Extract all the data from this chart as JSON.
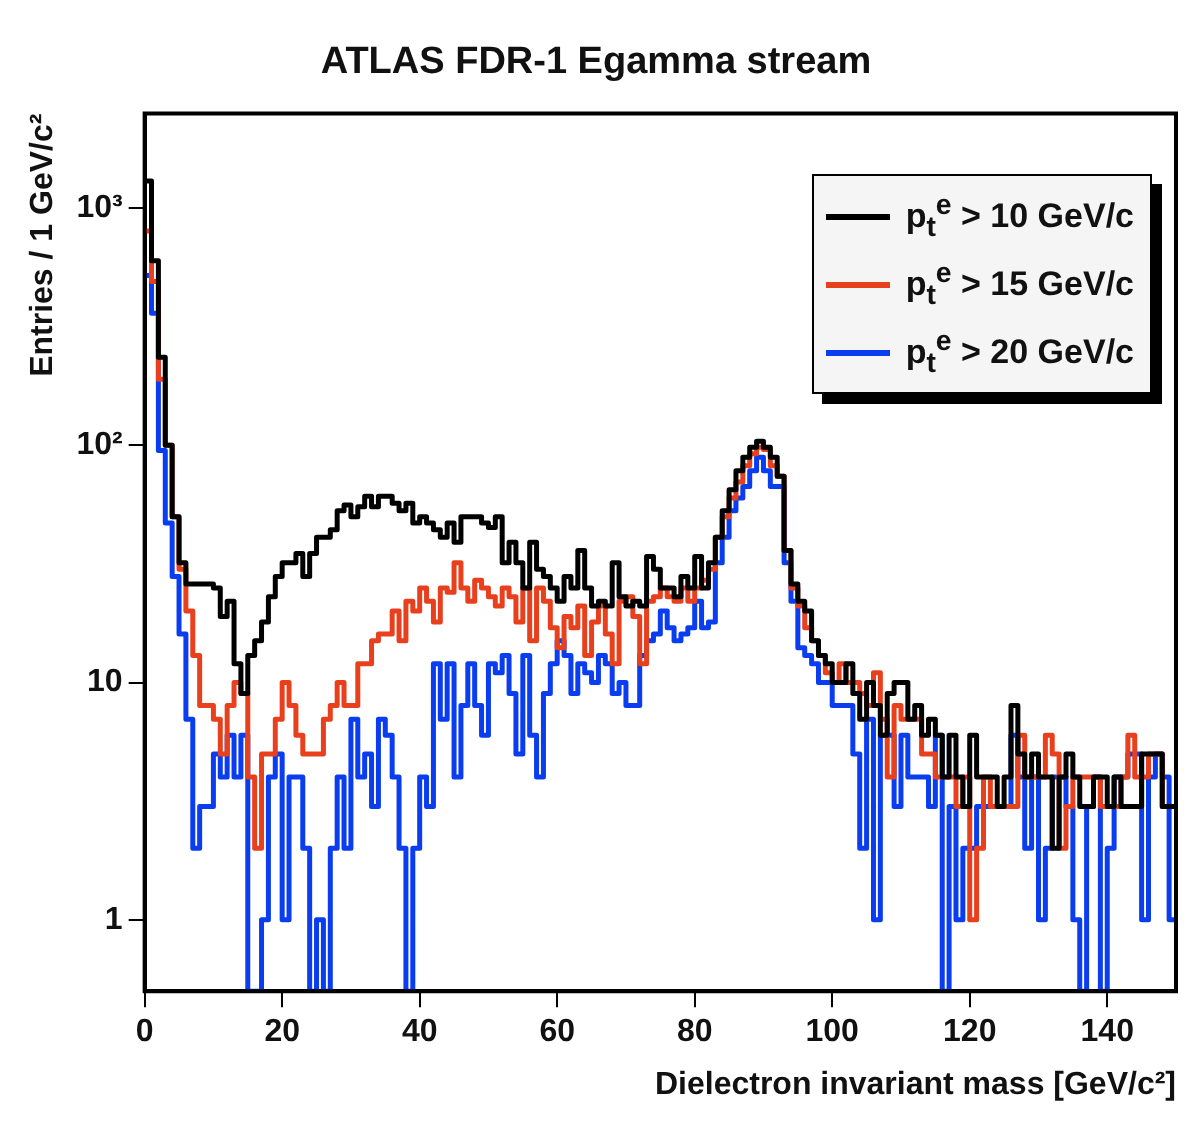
{
  "chart_data": {
    "type": "histogram",
    "title": "ATLAS FDR-1 Egamma stream",
    "xlabel": "Dielectron invariant mass [GeV/c²]",
    "ylabel": "Entries / 1 GeV/c²",
    "bins": [
      0,
      1,
      2,
      3,
      4,
      5,
      6,
      7,
      8,
      9,
      10,
      11,
      12,
      13,
      14,
      15,
      16,
      17,
      18,
      19,
      20,
      21,
      22,
      23,
      24,
      25,
      26,
      27,
      28,
      29,
      30,
      31,
      32,
      33,
      34,
      35,
      36,
      37,
      38,
      39,
      40,
      41,
      42,
      43,
      44,
      45,
      46,
      47,
      48,
      49,
      50,
      51,
      52,
      53,
      54,
      55,
      56,
      57,
      58,
      59,
      60,
      61,
      62,
      63,
      64,
      65,
      66,
      67,
      68,
      69,
      70,
      71,
      72,
      73,
      74,
      75,
      76,
      77,
      78,
      79,
      80,
      81,
      82,
      83,
      84,
      85,
      86,
      87,
      88,
      89,
      90,
      91,
      92,
      93,
      94,
      95,
      96,
      97,
      98,
      99,
      100,
      101,
      102,
      103,
      104,
      105,
      106,
      107,
      108,
      109,
      110,
      111,
      112,
      113,
      114,
      115,
      116,
      117,
      118,
      119,
      120,
      121,
      122,
      123,
      124,
      125,
      126,
      127,
      128,
      129,
      130,
      131,
      132,
      133,
      134,
      135,
      136,
      137,
      138,
      139,
      140,
      141,
      142,
      143,
      144,
      145,
      146,
      147,
      148,
      149,
      150
    ],
    "series": [
      {
        "name": "p$_{t}$$^{e}$ > 10 GeV/c",
        "color": "#000000",
        "values": [
          1300,
          600,
          235,
          100,
          50,
          32,
          26,
          26,
          26,
          26,
          25,
          19,
          22,
          12,
          9,
          13,
          15,
          18,
          23,
          28,
          32,
          32,
          35,
          28,
          35,
          41,
          41,
          44,
          53,
          56,
          50,
          55,
          61,
          55,
          61,
          61,
          57,
          53,
          57,
          47,
          50,
          47,
          44,
          41,
          47,
          39,
          50,
          50,
          50,
          47,
          45,
          50,
          32,
          39,
          32,
          25,
          39,
          30,
          28,
          25,
          22,
          28,
          25,
          36,
          25,
          21,
          22,
          21,
          32,
          23,
          21,
          22,
          21,
          34,
          30,
          25,
          25,
          23,
          28,
          25,
          34,
          25,
          32,
          41,
          53,
          65,
          78,
          89,
          98,
          104,
          98,
          89,
          74,
          36,
          26,
          22,
          20,
          15,
          13,
          12,
          10,
          10,
          12,
          9,
          7,
          10,
          8,
          6,
          9,
          10,
          10,
          7,
          8,
          6,
          7,
          6,
          4,
          6,
          4,
          3,
          6,
          4,
          4,
          4,
          3,
          4,
          8,
          5,
          4,
          5,
          4,
          4,
          2,
          4,
          5,
          4,
          3,
          3,
          4,
          4,
          3,
          4,
          3,
          3,
          3,
          5,
          5,
          5,
          3,
          3
        ]
      },
      {
        "name": "p$_{t}$$^{e}$ > 15 GeV/c",
        "color": "#e8401c",
        "values": [
          800,
          490,
          190,
          100,
          50,
          30,
          20,
          13,
          8,
          8,
          7,
          5,
          8,
          10,
          9,
          4,
          2,
          5,
          5,
          7,
          10,
          8,
          6,
          5,
          5,
          5,
          7,
          8,
          10,
          8,
          8,
          12,
          12,
          15,
          16,
          16,
          20,
          15,
          22,
          20,
          25,
          22,
          18,
          25,
          24,
          32,
          25,
          22,
          27,
          25,
          23,
          21,
          25,
          23,
          18,
          25,
          15,
          25,
          22,
          17,
          14,
          19,
          17,
          21,
          13,
          18,
          21,
          16,
          12,
          22,
          23,
          19,
          12,
          22,
          23,
          25,
          23,
          22,
          25,
          22,
          25,
          27,
          30,
          41,
          50,
          60,
          70,
          82,
          92,
          98,
          96,
          82,
          74,
          36,
          25,
          21,
          17,
          15,
          13,
          11,
          10,
          12,
          10,
          10,
          9,
          8,
          11,
          7,
          4,
          8,
          7,
          7,
          7,
          5,
          5,
          4,
          4,
          4,
          3,
          4,
          1,
          2,
          4,
          3,
          3,
          3,
          3,
          6,
          4,
          4,
          4,
          6,
          5,
          2,
          3,
          4,
          4,
          4,
          4,
          3,
          3,
          3,
          4,
          6,
          4,
          4,
          5,
          5,
          3,
          3
        ]
      },
      {
        "name": "p$_{t}$$^{e}$ > 20 GeV/c",
        "color": "#0a3cf0",
        "values": [
          520,
          360,
          95,
          47,
          28,
          16,
          7,
          2,
          3,
          3,
          5,
          4,
          6,
          4,
          6,
          null,
          null,
          1,
          4,
          5,
          1,
          4,
          4,
          2,
          null,
          1,
          null,
          2,
          4,
          2,
          7,
          4,
          5,
          3,
          7,
          6,
          4,
          2,
          null,
          2,
          4,
          3,
          12,
          7,
          12,
          4,
          8,
          12,
          8,
          6,
          12,
          11,
          13,
          9,
          5,
          13,
          6,
          4,
          9,
          12,
          15,
          13,
          9,
          12,
          11,
          10,
          13,
          12,
          9,
          10,
          8,
          8,
          13,
          15,
          16,
          20,
          17,
          15,
          16,
          17,
          22,
          17,
          18,
          32,
          41,
          53,
          60,
          67,
          78,
          89,
          78,
          67,
          67,
          32,
          22,
          14,
          13,
          12,
          10,
          10,
          8,
          8,
          8,
          5,
          2,
          7,
          1,
          6,
          6,
          3,
          6,
          4,
          4,
          4,
          3,
          6,
          null,
          3,
          1,
          2,
          2,
          3,
          3,
          3,
          3,
          3,
          6,
          4,
          2,
          4,
          1,
          2,
          4,
          4,
          3,
          1,
          null,
          3,
          4,
          null,
          2,
          4,
          4,
          5,
          5,
          1,
          4,
          5,
          4,
          1
        ]
      }
    ],
    "xlim": [
      0,
      150
    ],
    "xticks": [
      0,
      20,
      40,
      60,
      80,
      100,
      120,
      140
    ],
    "ylim": [
      0.5,
      2500
    ],
    "yticks": [
      1,
      10,
      {
        "value": 100,
        "label": "10²"
      },
      {
        "value": 1000,
        "label": "10³"
      }
    ],
    "log": true,
    "legend": "top right"
  }
}
